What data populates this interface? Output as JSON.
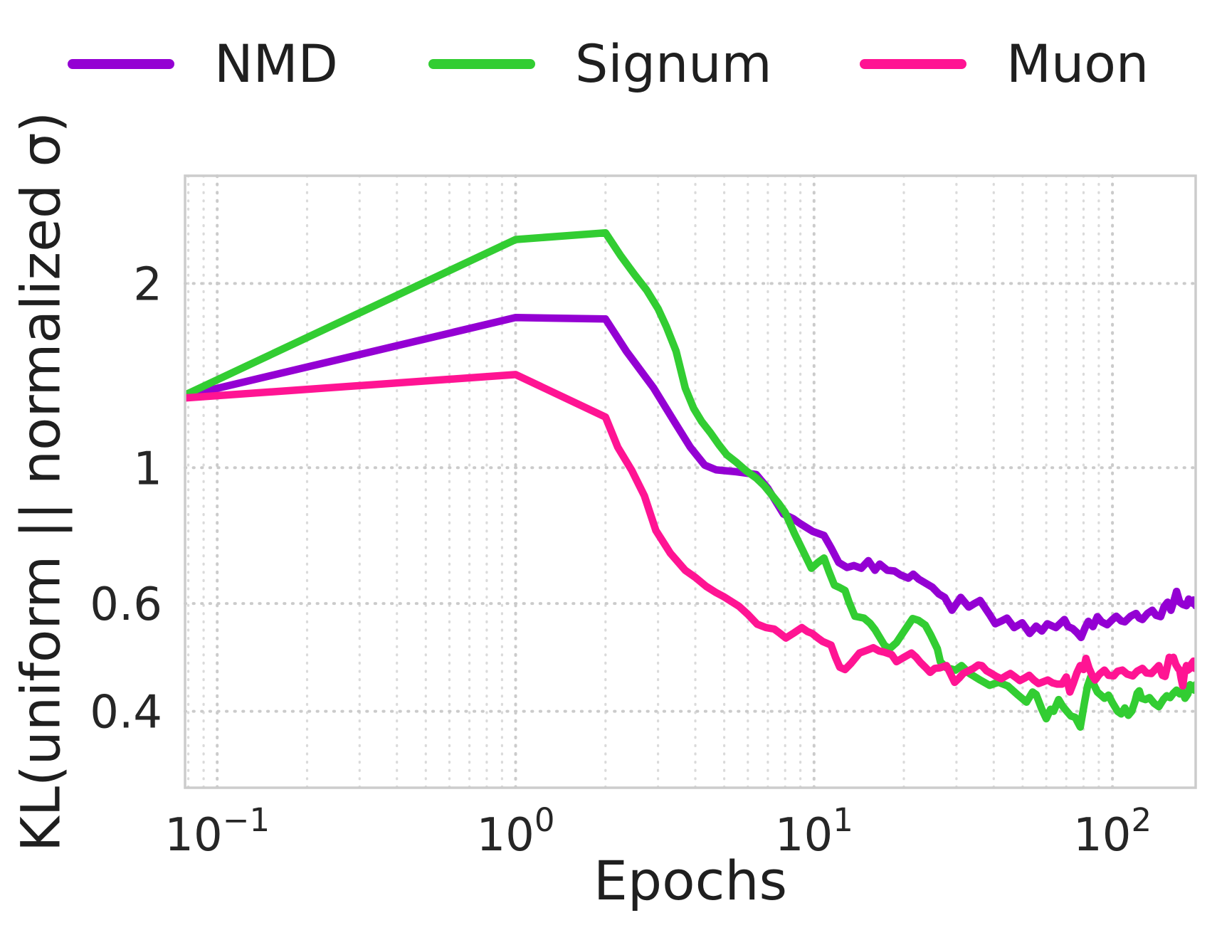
{
  "chart_data": {
    "type": "line",
    "title": "",
    "xlabel": "Epochs",
    "ylabel": "KL(uniform || normalized σ)",
    "x_scale": "log",
    "y_scale": "log",
    "xlim": [
      0.078,
      190
    ],
    "ylim": [
      0.3,
      3.0
    ],
    "grid": {
      "style": "dotted",
      "color": "#d6d6d6",
      "horizontal": "ticks-only",
      "vertical": "majors-and-log-minors"
    },
    "legend_position": "top-outside",
    "x_ticks": [
      {
        "value": 0.1,
        "base": "10",
        "exp": "−1"
      },
      {
        "value": 1,
        "base": "10",
        "exp": "0"
      },
      {
        "value": 10,
        "base": "10",
        "exp": "1"
      },
      {
        "value": 100,
        "base": "10",
        "exp": "2"
      }
    ],
    "y_ticks": [
      {
        "value": 2,
        "label": "2"
      },
      {
        "value": 1,
        "label": "1"
      },
      {
        "value": 0.6,
        "label": "0.6"
      },
      {
        "value": 0.4,
        "label": "0.4"
      }
    ],
    "series": [
      {
        "name": "NMD",
        "color": "#9400D3",
        "points": [
          [
            0.078,
            1.31
          ],
          [
            1,
            1.76
          ],
          [
            2,
            1.75
          ],
          [
            2.35,
            1.55
          ],
          [
            2.9,
            1.35
          ],
          [
            3.4,
            1.19
          ],
          [
            3.85,
            1.08
          ],
          [
            4.3,
            1.01
          ],
          [
            4.7,
            0.992
          ],
          [
            5.5,
            0.985
          ],
          [
            6.4,
            0.975
          ],
          [
            7.0,
            0.925
          ],
          [
            7.9,
            0.84
          ],
          [
            8.5,
            0.826
          ],
          [
            9.0,
            0.81
          ],
          [
            9.9,
            0.787
          ],
          [
            10.8,
            0.775
          ],
          [
            11.4,
            0.74
          ],
          [
            12.1,
            0.7
          ],
          [
            12.9,
            0.687
          ],
          [
            13.6,
            0.692
          ],
          [
            14.4,
            0.685
          ],
          [
            15.2,
            0.705
          ],
          [
            16.0,
            0.68
          ],
          [
            16.6,
            0.696
          ],
          [
            17.6,
            0.68
          ],
          [
            18.6,
            0.678
          ],
          [
            19.5,
            0.668
          ],
          [
            20.7,
            0.66
          ],
          [
            21.5,
            0.67
          ],
          [
            22.4,
            0.658
          ],
          [
            23.6,
            0.648
          ],
          [
            24.9,
            0.638
          ],
          [
            26.2,
            0.622
          ],
          [
            27.4,
            0.614
          ],
          [
            29.0,
            0.585
          ],
          [
            31.0,
            0.614
          ],
          [
            33.0,
            0.592
          ],
          [
            34.5,
            0.6
          ],
          [
            36.0,
            0.607
          ],
          [
            38.7,
            0.576
          ],
          [
            40.5,
            0.556
          ],
          [
            42.5,
            0.562
          ],
          [
            44.3,
            0.568
          ],
          [
            46.8,
            0.548
          ],
          [
            49.8,
            0.558
          ],
          [
            52.8,
            0.536
          ],
          [
            55.5,
            0.551
          ],
          [
            58.0,
            0.541
          ],
          [
            60.5,
            0.556
          ],
          [
            64.6,
            0.548
          ],
          [
            69.0,
            0.565
          ],
          [
            71.0,
            0.55
          ],
          [
            73.5,
            0.546
          ],
          [
            76.0,
            0.538
          ],
          [
            78.5,
            0.528
          ],
          [
            81.0,
            0.548
          ],
          [
            83.0,
            0.561
          ],
          [
            86.0,
            0.55
          ],
          [
            89.0,
            0.571
          ],
          [
            92.0,
            0.56
          ],
          [
            96.0,
            0.554
          ],
          [
            100,
            0.565
          ],
          [
            103,
            0.572
          ],
          [
            107,
            0.562
          ],
          [
            110,
            0.56
          ],
          [
            115,
            0.572
          ],
          [
            120,
            0.578
          ],
          [
            123,
            0.568
          ],
          [
            126,
            0.565
          ],
          [
            131,
            0.578
          ],
          [
            136,
            0.585
          ],
          [
            140,
            0.574
          ],
          [
            145,
            0.571
          ],
          [
            149,
            0.593
          ],
          [
            153,
            0.603
          ],
          [
            157,
            0.585
          ],
          [
            161,
            0.608
          ],
          [
            164,
            0.628
          ],
          [
            168,
            0.603
          ],
          [
            172,
            0.598
          ],
          [
            177,
            0.595
          ],
          [
            180,
            0.61
          ],
          [
            184,
            0.601
          ],
          [
            187,
            0.608
          ],
          [
            190,
            0.595
          ]
        ]
      },
      {
        "name": "Signum",
        "color": "#32CD32",
        "points": [
          [
            0.078,
            1.315
          ],
          [
            1,
            2.36
          ],
          [
            2,
            2.42
          ],
          [
            2.25,
            2.22
          ],
          [
            2.5,
            2.07
          ],
          [
            2.75,
            1.95
          ],
          [
            3.0,
            1.82
          ],
          [
            3.2,
            1.7
          ],
          [
            3.45,
            1.55
          ],
          [
            3.7,
            1.35
          ],
          [
            3.95,
            1.25
          ],
          [
            4.2,
            1.19
          ],
          [
            4.5,
            1.14
          ],
          [
            4.8,
            1.09
          ],
          [
            5.1,
            1.05
          ],
          [
            5.5,
            1.02
          ],
          [
            5.9,
            0.99
          ],
          [
            6.4,
            0.962
          ],
          [
            6.8,
            0.935
          ],
          [
            7.15,
            0.908
          ],
          [
            7.6,
            0.875
          ],
          [
            8.0,
            0.845
          ],
          [
            8.6,
            0.78
          ],
          [
            9.2,
            0.73
          ],
          [
            9.8,
            0.685
          ],
          [
            10.3,
            0.7
          ],
          [
            10.8,
            0.712
          ],
          [
            11.2,
            0.678
          ],
          [
            11.7,
            0.643
          ],
          [
            12.2,
            0.637
          ],
          [
            12.7,
            0.63
          ],
          [
            13.1,
            0.603
          ],
          [
            13.7,
            0.572
          ],
          [
            14.7,
            0.568
          ],
          [
            15.4,
            0.557
          ],
          [
            16.0,
            0.544
          ],
          [
            17.2,
            0.513
          ],
          [
            17.9,
            0.506
          ],
          [
            18.9,
            0.518
          ],
          [
            20.0,
            0.54
          ],
          [
            21.4,
            0.567
          ],
          [
            22.4,
            0.563
          ],
          [
            23.6,
            0.553
          ],
          [
            24.6,
            0.533
          ],
          [
            25.9,
            0.506
          ],
          [
            26.5,
            0.482
          ],
          [
            27.8,
            0.471
          ],
          [
            29.8,
            0.467
          ],
          [
            31.2,
            0.475
          ],
          [
            33.2,
            0.461
          ],
          [
            36.0,
            0.45
          ],
          [
            38.7,
            0.441
          ],
          [
            41.5,
            0.446
          ],
          [
            44.6,
            0.44
          ],
          [
            48.0,
            0.426
          ],
          [
            51.5,
            0.414
          ],
          [
            54.0,
            0.43
          ],
          [
            55.5,
            0.426
          ],
          [
            58.0,
            0.403
          ],
          [
            60.0,
            0.389
          ],
          [
            62.0,
            0.403
          ],
          [
            63.5,
            0.4
          ],
          [
            66.0,
            0.418
          ],
          [
            68.0,
            0.408
          ],
          [
            70.0,
            0.401
          ],
          [
            72.5,
            0.393
          ],
          [
            75.0,
            0.391
          ],
          [
            78.0,
            0.377
          ],
          [
            80.5,
            0.412
          ],
          [
            82.5,
            0.44
          ],
          [
            84.5,
            0.455
          ],
          [
            87.0,
            0.44
          ],
          [
            89.0,
            0.43
          ],
          [
            94.0,
            0.42
          ],
          [
            97.0,
            0.425
          ],
          [
            100,
            0.413
          ],
          [
            104,
            0.4
          ],
          [
            107,
            0.396
          ],
          [
            110,
            0.405
          ],
          [
            113,
            0.394
          ],
          [
            116,
            0.4
          ],
          [
            119,
            0.415
          ],
          [
            121,
            0.428
          ],
          [
            123,
            0.432
          ],
          [
            125,
            0.42
          ],
          [
            129,
            0.418
          ],
          [
            133,
            0.421
          ],
          [
            138,
            0.412
          ],
          [
            143,
            0.407
          ],
          [
            148,
            0.418
          ],
          [
            152,
            0.424
          ],
          [
            156,
            0.421
          ],
          [
            160,
            0.428
          ],
          [
            164,
            0.433
          ],
          [
            168,
            0.427
          ],
          [
            172,
            0.43
          ],
          [
            175,
            0.42
          ],
          [
            179,
            0.427
          ],
          [
            182,
            0.442
          ],
          [
            185,
            0.436
          ],
          [
            188,
            0.433
          ],
          [
            190,
            0.442
          ]
        ]
      },
      {
        "name": "Muon",
        "color": "#FF1493",
        "points": [
          [
            0.078,
            1.3
          ],
          [
            1,
            1.42
          ],
          [
            2,
            1.21
          ],
          [
            2.2,
            1.08
          ],
          [
            2.45,
            0.99
          ],
          [
            2.7,
            0.9
          ],
          [
            2.95,
            0.79
          ],
          [
            3.3,
            0.725
          ],
          [
            3.7,
            0.68
          ],
          [
            4.0,
            0.662
          ],
          [
            4.35,
            0.64
          ],
          [
            4.7,
            0.625
          ],
          [
            5.0,
            0.615
          ],
          [
            5.6,
            0.594
          ],
          [
            6.0,
            0.576
          ],
          [
            6.45,
            0.555
          ],
          [
            6.9,
            0.548
          ],
          [
            7.35,
            0.545
          ],
          [
            7.7,
            0.536
          ],
          [
            8.05,
            0.527
          ],
          [
            8.6,
            0.538
          ],
          [
            9.1,
            0.548
          ],
          [
            9.5,
            0.54
          ],
          [
            9.85,
            0.536
          ],
          [
            10.3,
            0.527
          ],
          [
            10.7,
            0.52
          ],
          [
            11.4,
            0.513
          ],
          [
            11.8,
            0.49
          ],
          [
            12.2,
            0.472
          ],
          [
            12.7,
            0.468
          ],
          [
            13.3,
            0.479
          ],
          [
            14.2,
            0.498
          ],
          [
            15.0,
            0.503
          ],
          [
            15.8,
            0.508
          ],
          [
            16.5,
            0.502
          ],
          [
            17.1,
            0.5
          ],
          [
            18.2,
            0.495
          ],
          [
            18.9,
            0.482
          ],
          [
            20.0,
            0.49
          ],
          [
            21.2,
            0.498
          ],
          [
            22.0,
            0.49
          ],
          [
            22.7,
            0.481
          ],
          [
            23.6,
            0.472
          ],
          [
            24.5,
            0.463
          ],
          [
            25.4,
            0.47
          ],
          [
            26.4,
            0.471
          ],
          [
            27.8,
            0.475
          ],
          [
            28.7,
            0.46
          ],
          [
            29.6,
            0.446
          ],
          [
            30.6,
            0.453
          ],
          [
            31.6,
            0.461
          ],
          [
            33.0,
            0.466
          ],
          [
            34.2,
            0.47
          ],
          [
            35.5,
            0.476
          ],
          [
            36.5,
            0.475
          ],
          [
            37.8,
            0.466
          ],
          [
            39.3,
            0.461
          ],
          [
            40.8,
            0.456
          ],
          [
            42.4,
            0.452
          ],
          [
            44.0,
            0.457
          ],
          [
            45.5,
            0.461
          ],
          [
            47.2,
            0.455
          ],
          [
            48.9,
            0.449
          ],
          [
            50.7,
            0.453
          ],
          [
            52.6,
            0.458
          ],
          [
            54.5,
            0.45
          ],
          [
            56.5,
            0.444
          ],
          [
            58.6,
            0.447
          ],
          [
            60.7,
            0.45
          ],
          [
            63.0,
            0.445
          ],
          [
            65.3,
            0.443
          ],
          [
            67.7,
            0.443
          ],
          [
            70.0,
            0.455
          ],
          [
            72.0,
            0.43
          ],
          [
            74.0,
            0.445
          ],
          [
            76.0,
            0.462
          ],
          [
            78.0,
            0.475
          ],
          [
            80.0,
            0.468
          ],
          [
            81.5,
            0.488
          ],
          [
            83.5,
            0.47
          ],
          [
            85.5,
            0.458
          ],
          [
            87.5,
            0.45
          ],
          [
            90.5,
            0.46
          ],
          [
            94.0,
            0.467
          ],
          [
            97.0,
            0.458
          ],
          [
            101,
            0.457
          ],
          [
            104,
            0.465
          ],
          [
            108,
            0.467
          ],
          [
            112,
            0.46
          ],
          [
            117,
            0.457
          ],
          [
            121,
            0.465
          ],
          [
            126,
            0.47
          ],
          [
            130,
            0.462
          ],
          [
            135,
            0.461
          ],
          [
            139,
            0.468
          ],
          [
            143,
            0.475
          ],
          [
            147,
            0.458
          ],
          [
            150,
            0.456
          ],
          [
            153,
            0.476
          ],
          [
            155,
            0.49
          ],
          [
            158,
            0.487
          ],
          [
            160,
            0.49
          ],
          [
            163,
            0.477
          ],
          [
            166,
            0.47
          ],
          [
            168,
            0.467
          ],
          [
            170,
            0.452
          ],
          [
            172,
            0.44
          ],
          [
            174,
            0.46
          ],
          [
            177,
            0.475
          ],
          [
            179,
            0.467
          ],
          [
            182,
            0.47
          ],
          [
            184,
            0.478
          ],
          [
            187,
            0.483
          ],
          [
            189,
            0.47
          ],
          [
            190,
            0.472
          ]
        ]
      }
    ]
  },
  "style": {
    "axis_text_color": "#262626",
    "spine_color": "#cccccc",
    "grid_major_color": "#cbcbcb",
    "grid_minor_color": "#dadada",
    "background": "#ffffff",
    "line_width": 10.5
  }
}
